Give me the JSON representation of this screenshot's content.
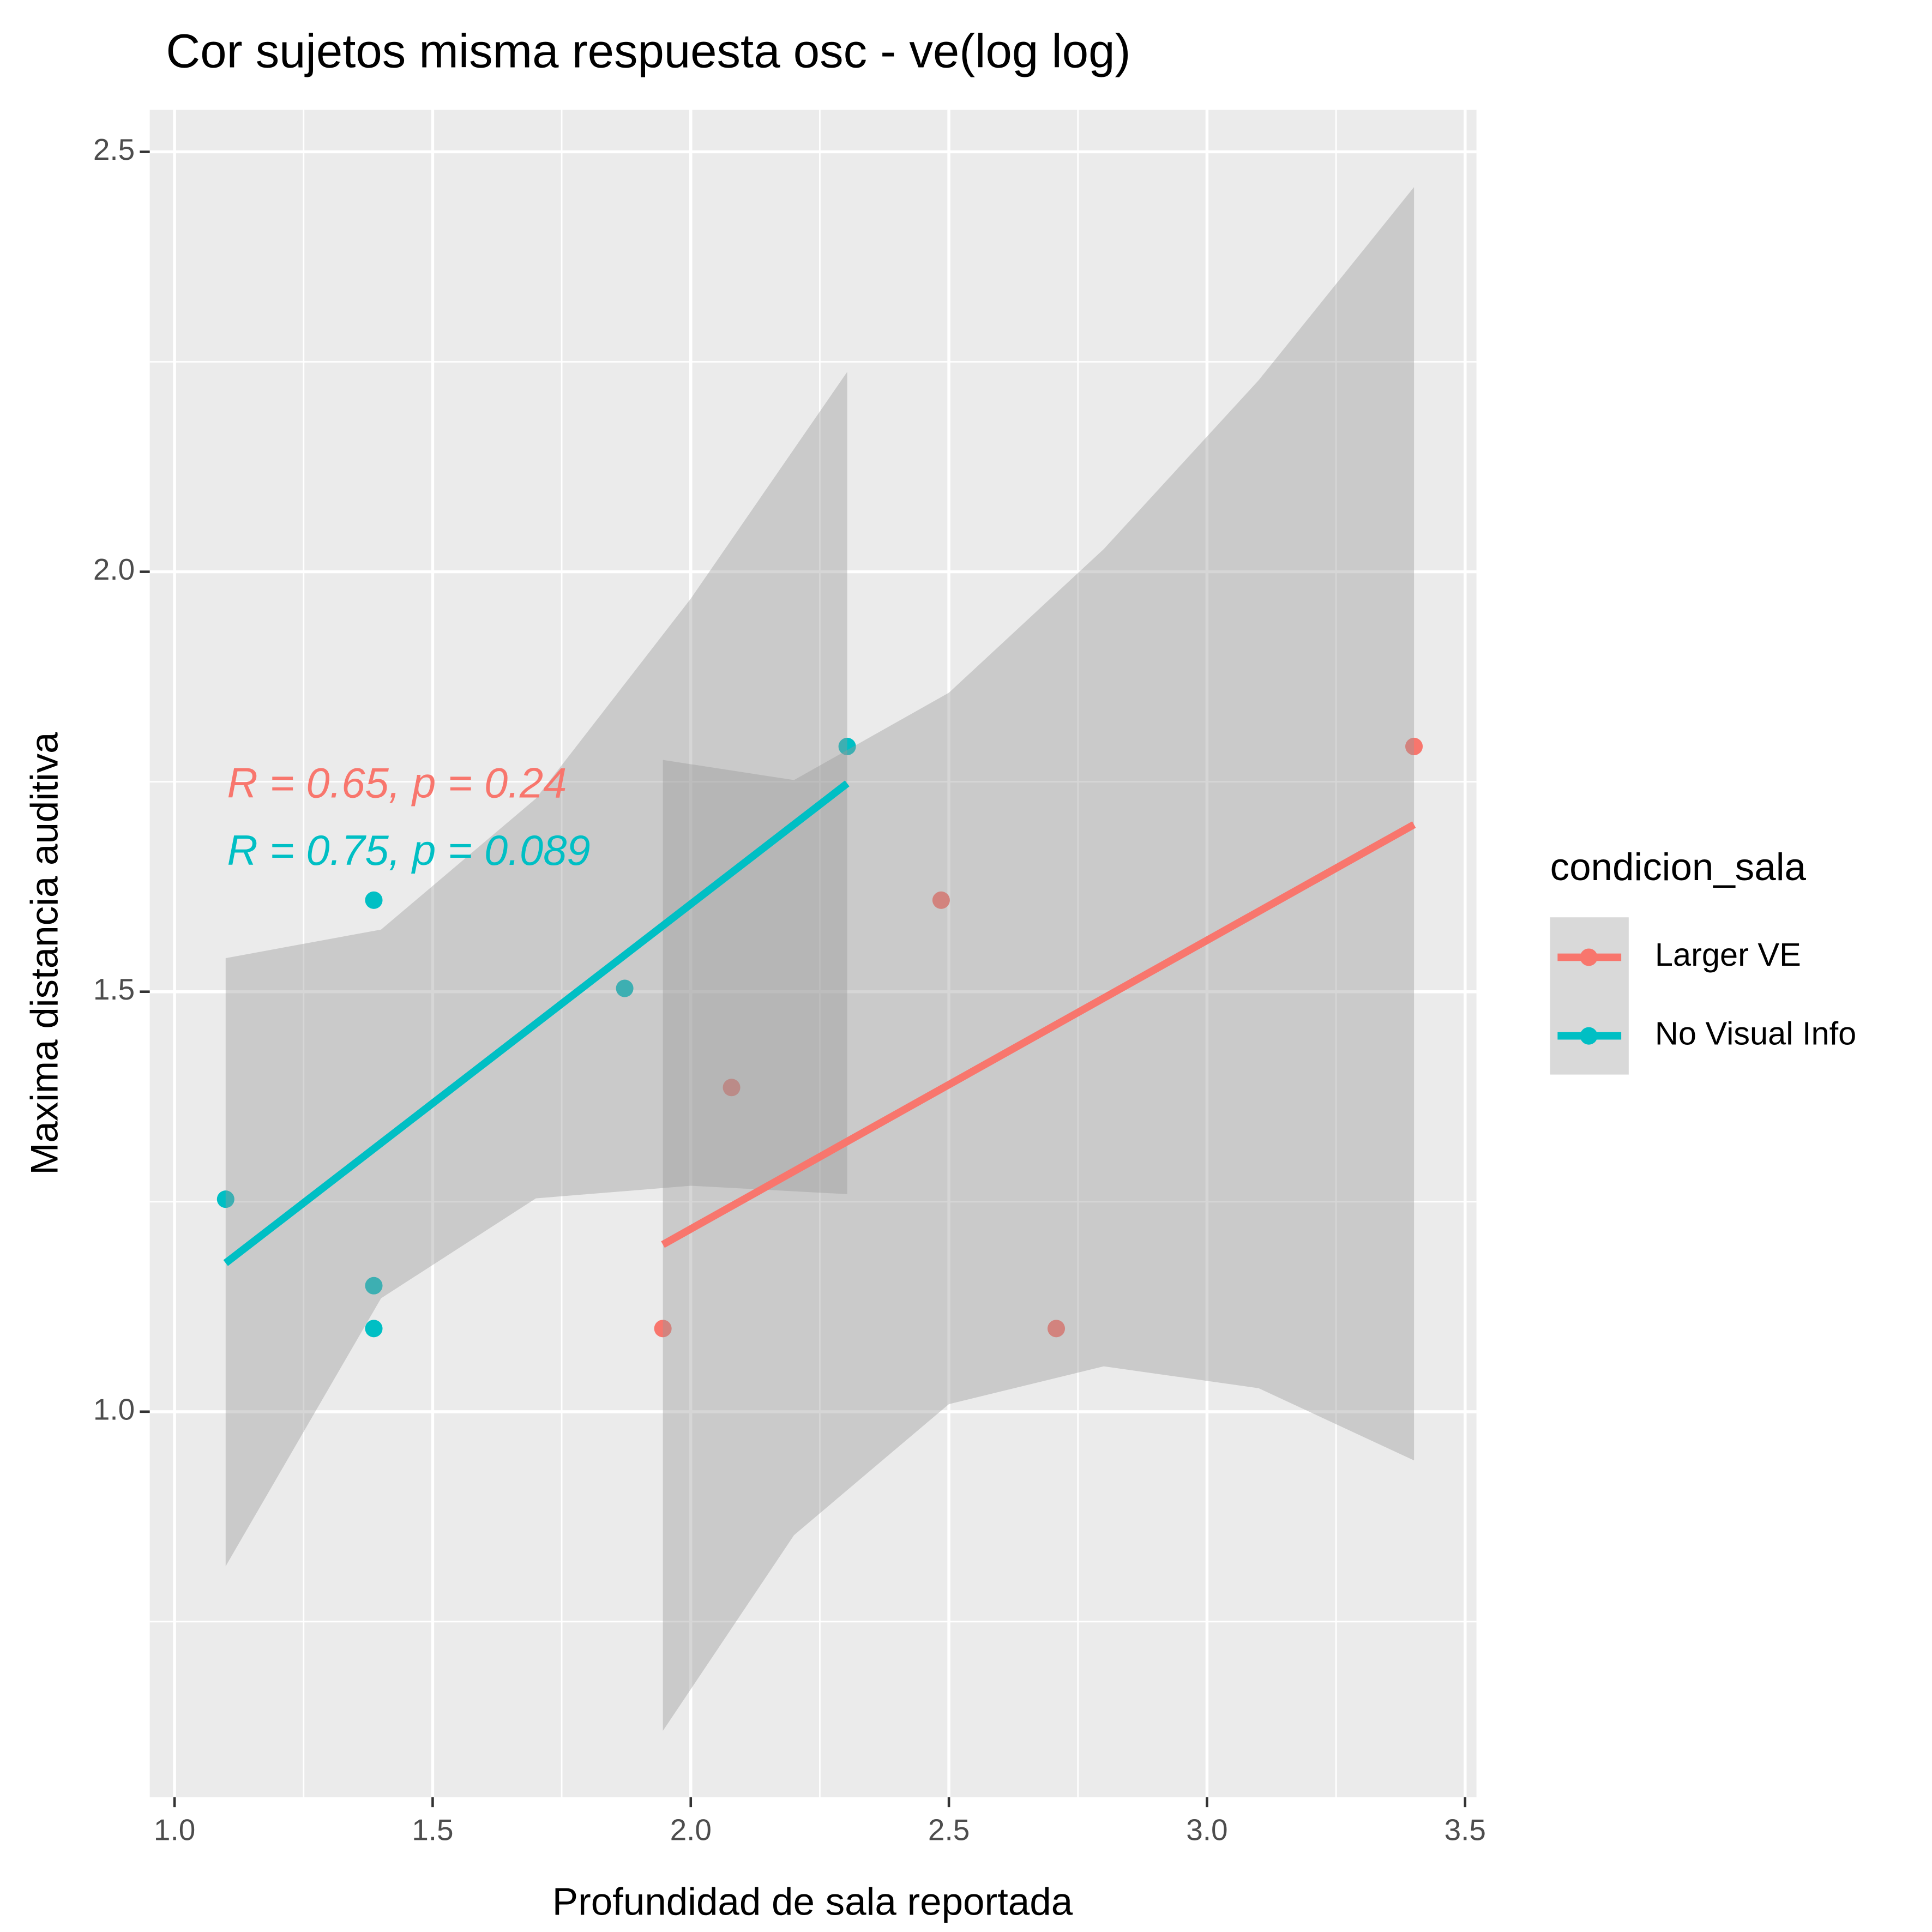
{
  "chart_data": {
    "type": "scatter",
    "title": "Cor sujetos misma respuesta osc - ve(log log)",
    "xlabel": "Profundidad de sala reportada",
    "ylabel": "Maxima distancia auditiva",
    "legend_title": "condicion_sala",
    "legend_position": "right",
    "grid": true,
    "xlim": [
      0.952,
      3.522
    ],
    "ylim": [
      0.541,
      2.55
    ],
    "xticks": [
      {
        "value": 1,
        "label": "1.0"
      },
      1.5,
      {
        "value": 2,
        "label": "2.0"
      },
      2.5,
      {
        "value": 3,
        "label": "3.0"
      },
      3.5
    ],
    "yticks": [
      {
        "value": 1,
        "label": "1.0"
      },
      1.5,
      {
        "value": 2,
        "label": "2.0"
      },
      2.5
    ],
    "x_minor_grid": [
      1.25,
      1.75,
      2.25,
      2.75,
      3.25
    ],
    "y_minor_grid": [
      0.75,
      1.25,
      1.75,
      2.25
    ],
    "series": [
      {
        "name": "Larger VE",
        "color": "#F8766D",
        "x": [
          1.946,
          2.079,
          2.485,
          2.708,
          3.401
        ],
        "y": [
          1.099,
          1.386,
          1.609,
          1.099,
          1.792
        ],
        "fit_x": [
          1.946,
          3.401
        ],
        "fit_y": [
          1.199,
          1.699
        ],
        "band_x": [
          1.946,
          2.2,
          2.5,
          2.8,
          3.1,
          3.401
        ],
        "band_lower": [
          0.62,
          0.853,
          1.009,
          1.054,
          1.028,
          0.942
        ],
        "band_upper": [
          1.776,
          1.752,
          1.856,
          2.027,
          2.228,
          2.458
        ]
      },
      {
        "name": "No Visual Info",
        "color": "#00BFC4",
        "x": [
          1.099,
          1.386,
          1.386,
          1.386,
          1.872,
          2.303
        ],
        "y": [
          1.253,
          1.609,
          1.099,
          1.15,
          1.504,
          1.792
        ],
        "fit_x": [
          1.099,
          2.303
        ],
        "fit_y": [
          1.177,
          1.748
        ],
        "band_x": [
          1.099,
          1.4,
          1.7,
          2.0,
          2.303
        ],
        "band_lower": [
          0.816,
          1.135,
          1.254,
          1.269,
          1.259
        ],
        "band_upper": [
          1.54,
          1.574,
          1.73,
          1.968,
          2.238
        ]
      }
    ],
    "annotations": [
      {
        "text": "R = 0.65, p = 0.24",
        "color": "#F8766D"
      },
      {
        "text": "R = 0.75, p = 0.089",
        "color": "#00BFC4"
      }
    ]
  }
}
